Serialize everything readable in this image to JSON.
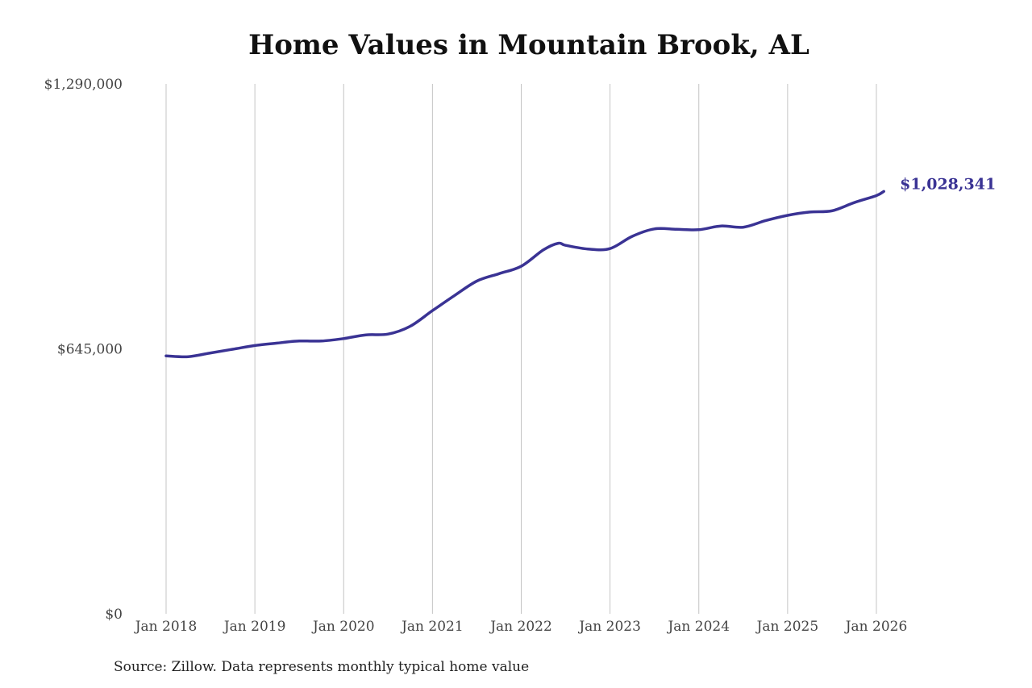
{
  "chart_data": {
    "type": "line",
    "title": "Home Values in Mountain Brook, AL",
    "source": "Source: Zillow. Data represents monthly typical home value",
    "ylim": [
      0,
      1290000
    ],
    "y_ticks": [
      {
        "value": 0,
        "label": "$0"
      },
      {
        "value": 645000,
        "label": "$645,000"
      },
      {
        "value": 1290000,
        "label": "$1,290,000"
      }
    ],
    "x_ticks": [
      {
        "value": "2018-01",
        "label": "Jan 2018"
      },
      {
        "value": "2019-01",
        "label": "Jan 2019"
      },
      {
        "value": "2020-01",
        "label": "Jan 2020"
      },
      {
        "value": "2021-01",
        "label": "Jan 2021"
      },
      {
        "value": "2022-01",
        "label": "Jan 2022"
      },
      {
        "value": "2023-01",
        "label": "Jan 2023"
      },
      {
        "value": "2024-01",
        "label": "Jan 2024"
      },
      {
        "value": "2025-01",
        "label": "Jan 2025"
      },
      {
        "value": "2026-01",
        "label": "Jan 2026"
      }
    ],
    "grid": "vertical",
    "line_color": "#3a3394",
    "end_label": "$1,028,341",
    "points": [
      {
        "x": "2018-01",
        "y": 628000
      },
      {
        "x": "2018-04",
        "y": 626000
      },
      {
        "x": "2018-07",
        "y": 635000
      },
      {
        "x": "2018-10",
        "y": 644000
      },
      {
        "x": "2019-01",
        "y": 653000
      },
      {
        "x": "2019-04",
        "y": 659000
      },
      {
        "x": "2019-07",
        "y": 664000
      },
      {
        "x": "2019-10",
        "y": 664000
      },
      {
        "x": "2020-01",
        "y": 670000
      },
      {
        "x": "2020-04",
        "y": 679000
      },
      {
        "x": "2020-07",
        "y": 681000
      },
      {
        "x": "2020-10",
        "y": 700000
      },
      {
        "x": "2021-01",
        "y": 738000
      },
      {
        "x": "2021-04",
        "y": 775000
      },
      {
        "x": "2021-07",
        "y": 810000
      },
      {
        "x": "2021-10",
        "y": 828000
      },
      {
        "x": "2022-01",
        "y": 846000
      },
      {
        "x": "2022-04",
        "y": 886000
      },
      {
        "x": "2022-06",
        "y": 902000
      },
      {
        "x": "2022-07",
        "y": 897000
      },
      {
        "x": "2022-10",
        "y": 888000
      },
      {
        "x": "2023-01",
        "y": 889000
      },
      {
        "x": "2023-04",
        "y": 919000
      },
      {
        "x": "2023-07",
        "y": 937000
      },
      {
        "x": "2023-10",
        "y": 936000
      },
      {
        "x": "2024-01",
        "y": 935000
      },
      {
        "x": "2024-04",
        "y": 944000
      },
      {
        "x": "2024-07",
        "y": 941000
      },
      {
        "x": "2024-10",
        "y": 957000
      },
      {
        "x": "2025-01",
        "y": 970000
      },
      {
        "x": "2025-04",
        "y": 978000
      },
      {
        "x": "2025-07",
        "y": 981000
      },
      {
        "x": "2025-10",
        "y": 1001000
      },
      {
        "x": "2026-01",
        "y": 1018000
      },
      {
        "x": "2026-02",
        "y": 1028341
      }
    ]
  }
}
